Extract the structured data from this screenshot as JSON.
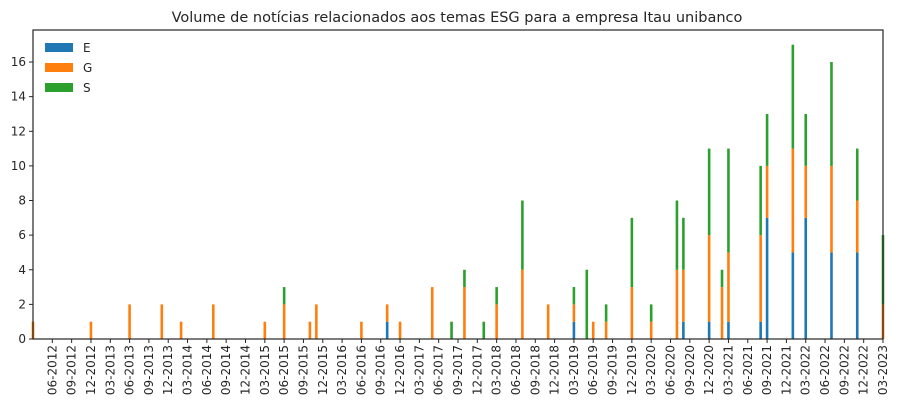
{
  "chart_data": {
    "type": "bar",
    "stacked": true,
    "title": "Volume de notícias relacionados aos temas ESG para a empresa Itau unibanco",
    "xlabel": "",
    "ylabel": "",
    "ylim": [
      0,
      17.85
    ],
    "yticks": [
      0,
      2,
      4,
      6,
      8,
      10,
      12,
      14,
      16
    ],
    "legend_position": "top-left",
    "grid": false,
    "period_start": "03-2012",
    "period_end": "03-2023",
    "tick_labels": [
      "06-2012",
      "09-2012",
      "12-2012",
      "03-2013",
      "06-2013",
      "09-2013",
      "12-2013",
      "03-2014",
      "06-2014",
      "09-2014",
      "12-2014",
      "03-2015",
      "06-2015",
      "09-2015",
      "12-2015",
      "03-2016",
      "06-2016",
      "09-2016",
      "12-2016",
      "03-2017",
      "06-2017",
      "09-2017",
      "12-2017",
      "03-2018",
      "06-2018",
      "09-2018",
      "12-2018",
      "03-2019",
      "06-2019",
      "09-2019",
      "12-2019",
      "03-2020",
      "06-2020",
      "09-2020",
      "12-2020",
      "03-2021",
      "06-2021",
      "09-2021",
      "12-2021",
      "03-2022",
      "06-2022",
      "09-2022",
      "12-2022",
      "03-2023"
    ],
    "series": [
      {
        "name": "E",
        "color": "#1f77b4",
        "values": [
          {
            "x": "10-2016",
            "y": 1
          },
          {
            "x": "03-2019",
            "y": 1
          },
          {
            "x": "08-2020",
            "y": 1
          },
          {
            "x": "12-2020",
            "y": 1
          },
          {
            "x": "03-2021",
            "y": 1
          },
          {
            "x": "08-2021",
            "y": 1
          },
          {
            "x": "09-2021",
            "y": 7
          },
          {
            "x": "01-2022",
            "y": 5
          },
          {
            "x": "03-2022",
            "y": 7
          },
          {
            "x": "07-2022",
            "y": 5
          },
          {
            "x": "11-2022",
            "y": 5
          }
        ]
      },
      {
        "name": "G",
        "color": "#ff7f0e",
        "values": [
          {
            "x": "03-2012",
            "y": 1
          },
          {
            "x": "12-2012",
            "y": 1
          },
          {
            "x": "06-2013",
            "y": 2
          },
          {
            "x": "11-2013",
            "y": 2
          },
          {
            "x": "02-2014",
            "y": 1
          },
          {
            "x": "07-2014",
            "y": 2
          },
          {
            "x": "03-2015",
            "y": 1
          },
          {
            "x": "06-2015",
            "y": 2
          },
          {
            "x": "10-2015",
            "y": 1
          },
          {
            "x": "11-2015",
            "y": 2
          },
          {
            "x": "06-2016",
            "y": 1
          },
          {
            "x": "10-2016",
            "y": 1
          },
          {
            "x": "12-2016",
            "y": 1
          },
          {
            "x": "05-2017",
            "y": 3
          },
          {
            "x": "10-2017",
            "y": 3
          },
          {
            "x": "03-2018",
            "y": 2
          },
          {
            "x": "07-2018",
            "y": 4
          },
          {
            "x": "11-2018",
            "y": 2
          },
          {
            "x": "03-2019",
            "y": 1
          },
          {
            "x": "06-2019",
            "y": 1
          },
          {
            "x": "08-2019",
            "y": 1
          },
          {
            "x": "12-2019",
            "y": 3
          },
          {
            "x": "03-2020",
            "y": 1
          },
          {
            "x": "07-2020",
            "y": 4
          },
          {
            "x": "08-2020",
            "y": 3
          },
          {
            "x": "12-2020",
            "y": 5
          },
          {
            "x": "02-2021",
            "y": 3
          },
          {
            "x": "03-2021",
            "y": 4
          },
          {
            "x": "08-2021",
            "y": 5
          },
          {
            "x": "09-2021",
            "y": 3
          },
          {
            "x": "01-2022",
            "y": 6
          },
          {
            "x": "03-2022",
            "y": 3
          },
          {
            "x": "07-2022",
            "y": 5
          },
          {
            "x": "11-2022",
            "y": 3
          },
          {
            "x": "03-2023",
            "y": 2
          }
        ]
      },
      {
        "name": "S",
        "color": "#2ca02c",
        "values": [
          {
            "x": "06-2015",
            "y": 1
          },
          {
            "x": "08-2017",
            "y": 1
          },
          {
            "x": "10-2017",
            "y": 1
          },
          {
            "x": "01-2018",
            "y": 1
          },
          {
            "x": "03-2018",
            "y": 1
          },
          {
            "x": "07-2018",
            "y": 4
          },
          {
            "x": "03-2019",
            "y": 1
          },
          {
            "x": "05-2019",
            "y": 4
          },
          {
            "x": "08-2019",
            "y": 1
          },
          {
            "x": "12-2019",
            "y": 4
          },
          {
            "x": "03-2020",
            "y": 1
          },
          {
            "x": "07-2020",
            "y": 4
          },
          {
            "x": "08-2020",
            "y": 3
          },
          {
            "x": "12-2020",
            "y": 5
          },
          {
            "x": "02-2021",
            "y": 1
          },
          {
            "x": "03-2021",
            "y": 6
          },
          {
            "x": "08-2021",
            "y": 4
          },
          {
            "x": "09-2021",
            "y": 3
          },
          {
            "x": "01-2022",
            "y": 6
          },
          {
            "x": "03-2022",
            "y": 3
          },
          {
            "x": "07-2022",
            "y": 6
          },
          {
            "x": "11-2022",
            "y": 3
          },
          {
            "x": "03-2023",
            "y": 4
          }
        ]
      }
    ]
  }
}
